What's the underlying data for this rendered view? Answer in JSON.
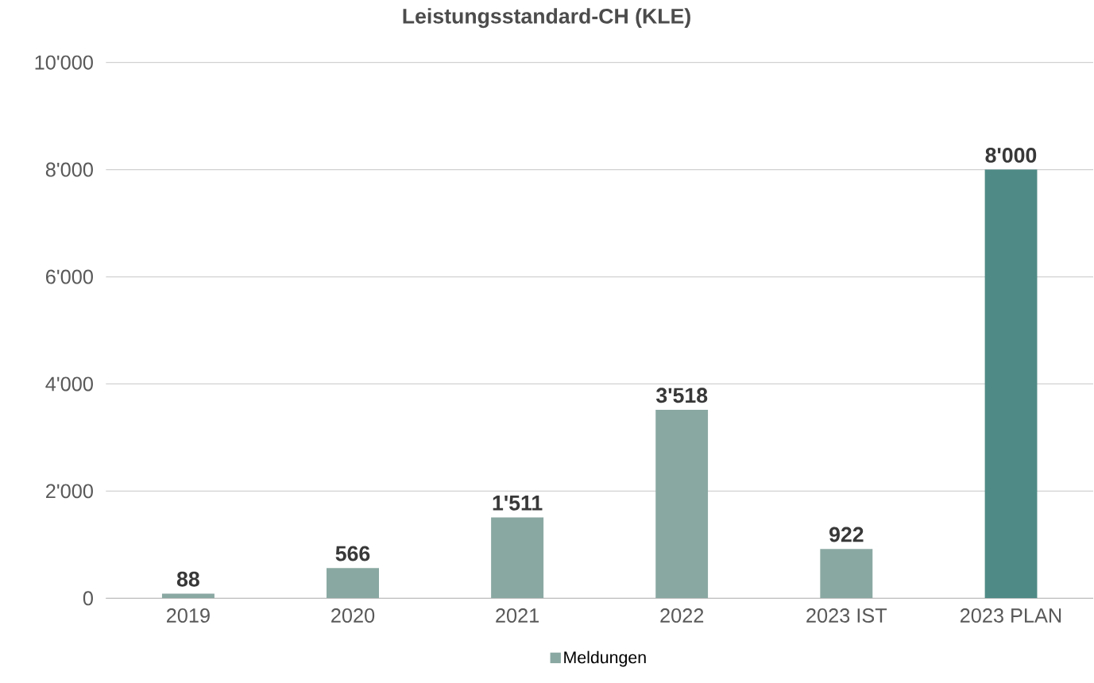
{
  "chart_data": {
    "type": "bar",
    "title": "Leistungsstandard-CH (KLE)",
    "categories": [
      "2019",
      "2020",
      "2021",
      "2022",
      "2023 IST",
      "2023 PLAN"
    ],
    "series": [
      {
        "name": "Meldungen",
        "color": "#8aa8a2",
        "values": [
          88,
          566,
          1511,
          3518,
          922,
          8000
        ],
        "colors": [
          "#8aa8a2",
          "#8aa8a2",
          "#8aa8a2",
          "#8aa8a2",
          "#8aa8a2",
          "#4f8a86"
        ],
        "value_labels": [
          "88",
          "566",
          "1'511",
          "3'518",
          "922",
          "8'000"
        ]
      }
    ],
    "ylim": [
      0,
      10000
    ],
    "yticks": [
      0,
      {
        "value": 2000,
        "label": "2'000"
      },
      {
        "value": 4000,
        "label": "4'000"
      },
      {
        "value": 6000,
        "label": "6'000"
      },
      {
        "value": 8000,
        "label": "8'000"
      },
      {
        "value": 10000,
        "label": "10'000"
      }
    ],
    "grid": "y",
    "legend": "bottom"
  }
}
